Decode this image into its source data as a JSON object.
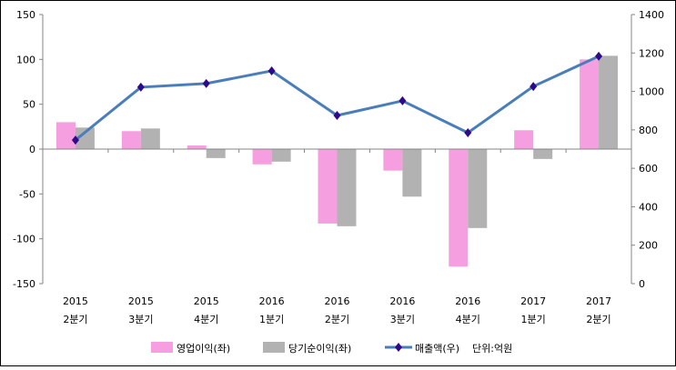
{
  "chart_data": {
    "type": "bar",
    "title": "",
    "categories": [
      {
        "year": "2015",
        "quarter": "2분기"
      },
      {
        "year": "2015",
        "quarter": "3분기"
      },
      {
        "year": "2015",
        "quarter": "4분기"
      },
      {
        "year": "2016",
        "quarter": "1분기"
      },
      {
        "year": "2016",
        "quarter": "2분기"
      },
      {
        "year": "2016",
        "quarter": "3분기"
      },
      {
        "year": "2016",
        "quarter": "4분기"
      },
      {
        "year": "2017",
        "quarter": "1분기"
      },
      {
        "year": "2017",
        "quarter": "2분기"
      }
    ],
    "left_axis": {
      "ylim": [
        -150,
        150
      ],
      "ticks": [
        150,
        100,
        50,
        0,
        -50,
        -100,
        -150
      ]
    },
    "right_axis": {
      "ylim": [
        0,
        1400
      ],
      "ticks": [
        1400,
        1200,
        1000,
        800,
        600,
        400,
        200,
        0
      ]
    },
    "series": [
      {
        "name": "영업이익(좌)",
        "type": "bar",
        "axis": "left",
        "color": "#f59ee0",
        "values": [
          30,
          20,
          4,
          -17,
          -83,
          -24,
          -131,
          21,
          100
        ]
      },
      {
        "name": "당기순이익(좌)",
        "type": "bar",
        "axis": "left",
        "color": "#b2b2b2",
        "values": [
          24,
          23,
          -10,
          -14,
          -86,
          -53,
          -88,
          -11,
          104
        ]
      },
      {
        "name": "매출액(우)",
        "type": "line",
        "axis": "right",
        "color": "#4a7ebb",
        "marker_color": "#2e0a8a",
        "values": [
          747,
          1022,
          1041,
          1107,
          875,
          951,
          785,
          1026,
          1183
        ]
      }
    ],
    "legend_note": "단위:억원",
    "legend_position": "bottom",
    "grid": false
  }
}
